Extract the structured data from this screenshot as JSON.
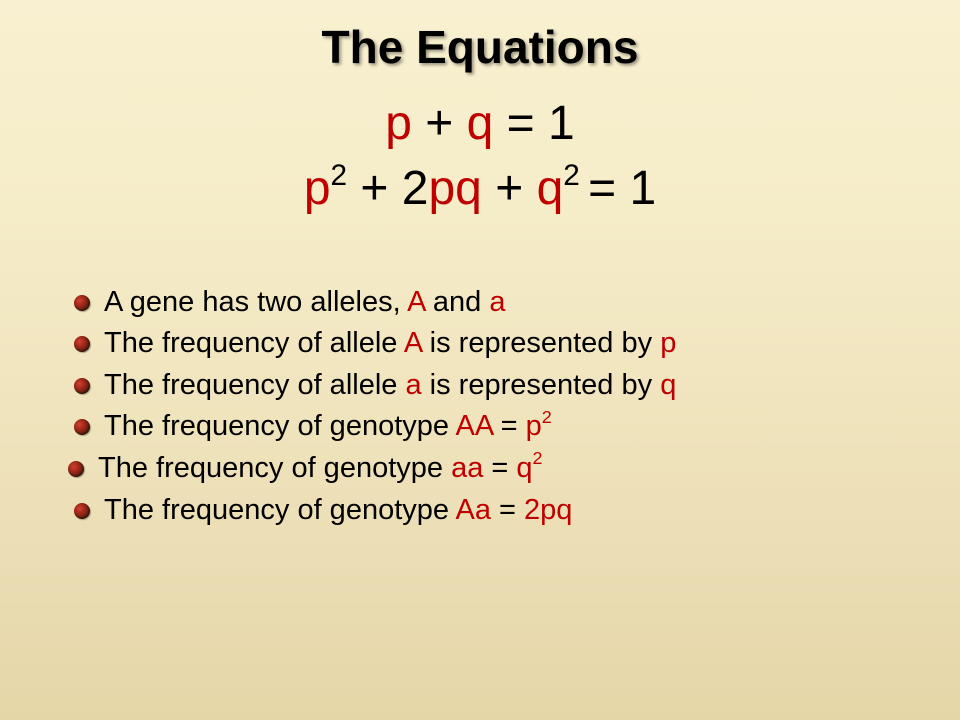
{
  "title": "The Equations",
  "eq1": {
    "p": "p",
    "plus": " + ",
    "q": "q",
    "equals": " = 1"
  },
  "eq2": {
    "p": "p",
    "sup2a": "2",
    "plus1": " + 2",
    "pq": "pq",
    "plus2": " + ",
    "q": "q",
    "sup2b": "2 ",
    "equals": "= 1"
  },
  "bullets": [
    {
      "pre": "A gene has two alleles, ",
      "r1": "A",
      "mid": " and ",
      "r2": "a",
      "post": ""
    },
    {
      "pre": "The frequency of allele ",
      "r1": "A",
      "mid": " is represented by ",
      "r2": "p",
      "post": ""
    },
    {
      "pre": "The frequency of allele ",
      "r1": "a",
      "mid": " is represented by ",
      "r2": "q",
      "post": ""
    },
    {
      "pre": "The frequency of genotype ",
      "r1": "AA",
      "mid": " = ",
      "r2": "p",
      "sup": "2",
      "post": ""
    },
    {
      "pre": "The frequency of genotype ",
      "r1": "aa",
      "mid": " = ",
      "r2": "q",
      "sup": "2",
      "post": ""
    },
    {
      "pre": "The frequency of genotype ",
      "r1": "Aa",
      "mid": " = ",
      "r2": "2pq",
      "post": ""
    }
  ],
  "colors": {
    "red": "#c00000",
    "text": "#000000",
    "bg_top": "#f8f0d0",
    "bg_bottom": "#e5d6a8"
  },
  "fonts": {
    "title_size": 46,
    "eq_size": 48,
    "bullet_size": 29
  }
}
